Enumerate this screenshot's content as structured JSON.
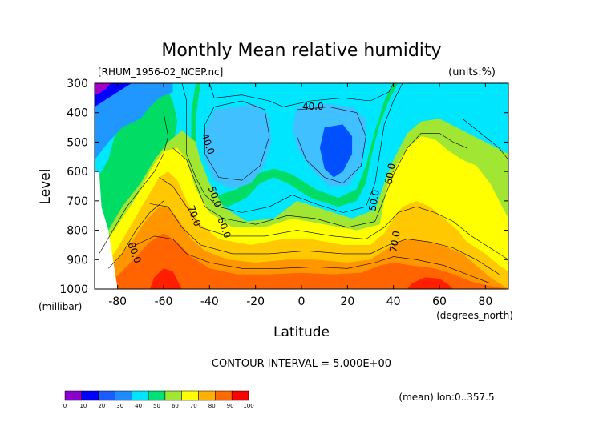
{
  "chart_data": {
    "type": "contour",
    "title": "Monthly Mean relative humidity",
    "source_file": "[RHUM_1956-02_NCEP.nc]",
    "units": "(units:%)",
    "xlabel": "Latitude",
    "xunits": "(degrees_north)",
    "ylabel": "Level",
    "yunits": "(millibar)",
    "xlim": [
      -90,
      90
    ],
    "ylim": [
      1000,
      300
    ],
    "x_ticks": [
      -80,
      -60,
      -40,
      -20,
      0,
      20,
      40,
      60,
      80
    ],
    "x_tick_labels": [
      "-80",
      "-60",
      "-40",
      "-20",
      "0",
      "20",
      "40",
      "60",
      "80"
    ],
    "y_ticks": [
      300,
      400,
      500,
      600,
      700,
      800,
      900,
      1000
    ],
    "y_tick_labels": [
      "300",
      "400",
      "500",
      "600",
      "700",
      "800",
      "900",
      "1000"
    ],
    "contour_interval_text": "CONTOUR INTERVAL = 5.000E+00",
    "footnote": "(mean) lon:0..357.5",
    "contour_labels": [
      {
        "text": "40.0",
        "x": 5,
        "y": 390
      },
      {
        "text": "40.0",
        "x": -42,
        "y": 510
      },
      {
        "text": "50.0",
        "x": -39,
        "y": 690
      },
      {
        "text": "60.0",
        "x": -35,
        "y": 795
      },
      {
        "text": "70.0",
        "x": -48,
        "y": 755
      },
      {
        "text": "80.0",
        "x": -74,
        "y": 880
      },
      {
        "text": "50.0",
        "x": 33,
        "y": 700
      },
      {
        "text": "60.0",
        "x": 40,
        "y": 610
      },
      {
        "text": "70.0",
        "x": 42,
        "y": 840
      }
    ],
    "color_bar": {
      "levels": [
        0,
        10,
        20,
        30,
        40,
        50,
        60,
        70,
        80,
        90,
        100
      ],
      "labels": [
        "0",
        "10",
        "20",
        "30",
        "40",
        "50",
        "60",
        "70",
        "80",
        "90",
        "100"
      ],
      "colors": [
        "#8a00cc",
        "#0000ff",
        "#1a5cff",
        "#1e8cff",
        "#00e5ff",
        "#00e078",
        "#a0e632",
        "#ffff00",
        "#ffb000",
        "#ff6a00",
        "#ff0000"
      ]
    },
    "fill_colors": {
      "violet": "#a000c8",
      "blue": "#0000ff",
      "blue2": "#0050ff",
      "blue3": "#2096ff",
      "lightblue": "#40c0ff",
      "cyan": "#00e6ff",
      "green": "#00dc64",
      "yellowgreen": "#a0e632",
      "yellow": "#ffff00",
      "lightorange": "#ffc800",
      "orange": "#ff9600",
      "darkorange": "#ff6400",
      "red": "#ff1e00"
    }
  }
}
